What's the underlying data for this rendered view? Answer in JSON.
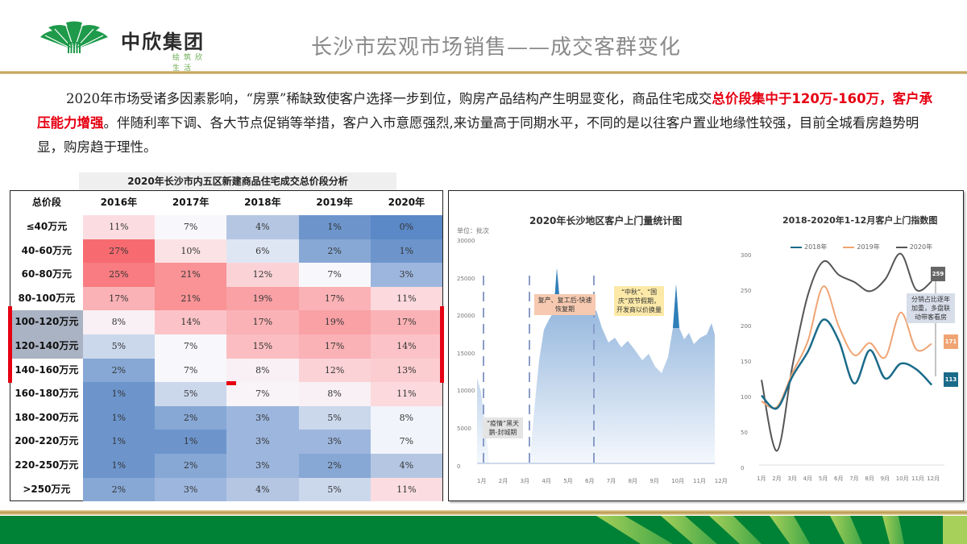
{
  "header": {
    "logo_name": "中欣集团",
    "logo_tagline": "绘筑欣生活",
    "title": "长沙市宏观市场销售——成交客群变化"
  },
  "paragraph": {
    "part1": "2020年市场受诸多因素影响，“房票”稀缺致使客户选择一步到位，购房产品结构产生明显变化，商品住宅成交",
    "highlight": "总价段集中于120万-160万，客户承压能力增强",
    "part2": "。伴随利率下调、各大节点促销等举措，客户入市意愿强烈,来访量高于同期水平，不同的是以往客户置业地缘性较强，目前全城看房趋势明显，购房趋于理性。"
  },
  "table": {
    "title": "2020年长沙市内五区新建商品住宅成交总价段分析",
    "headers": [
      "总价段",
      "2016年",
      "2017年",
      "2018年",
      "2019年",
      "2020年"
    ],
    "rows": [
      {
        "label": "≤40万元",
        "values": [
          "11%",
          "7%",
          "4%",
          "1%",
          "0%"
        ],
        "colors": [
          "#fbdde1",
          "#f8f8fc",
          "#b4c6e2",
          "#6d95cc",
          "#5b88c6"
        ]
      },
      {
        "label": "40-60万元",
        "values": [
          "27%",
          "10%",
          "6%",
          "2%",
          "1%"
        ],
        "colors": [
          "#f76b70",
          "#fbe2e4",
          "#dfe6f3",
          "#87a8d5",
          "#6d95cc"
        ]
      },
      {
        "label": "60-80万元",
        "values": [
          "25%",
          "21%",
          "12%",
          "7%",
          "3%"
        ],
        "colors": [
          "#f87c81",
          "#f99396",
          "#fbd3d7",
          "#f8f8fc",
          "#9db6de"
        ]
      },
      {
        "label": "80-100万元",
        "values": [
          "17%",
          "21%",
          "19%",
          "17%",
          "11%"
        ],
        "colors": [
          "#fab2b6",
          "#f99396",
          "#f9a1a5",
          "#fab2b6",
          "#fbd9dc"
        ]
      },
      {
        "label": "100-120万元",
        "values": [
          "8%",
          "14%",
          "17%",
          "19%",
          "17%"
        ],
        "colors": [
          "#f8f0f4",
          "#fbc3c7",
          "#fab2b6",
          "#f9a1a5",
          "#fab2b6"
        ],
        "highlight": true
      },
      {
        "label": "120-140万元",
        "values": [
          "5%",
          "7%",
          "15%",
          "17%",
          "14%"
        ],
        "colors": [
          "#cbd8ec",
          "#f8f8fc",
          "#fbbdc1",
          "#fab2b6",
          "#fbc3c7"
        ],
        "highlight": true
      },
      {
        "label": "140-160万元",
        "values": [
          "2%",
          "7%",
          "8%",
          "12%",
          "13%"
        ],
        "colors": [
          "#87a8d5",
          "#f8f8fc",
          "#f8f0f4",
          "#fbd3d7",
          "#fbcdd0"
        ],
        "highlight": true
      },
      {
        "label": "160-180万元",
        "values": [
          "1%",
          "5%",
          "7%",
          "8%",
          "11%"
        ],
        "colors": [
          "#6d95cc",
          "#cbd8ec",
          "#f8f4f8",
          "#f8f0f4",
          "#fbd9dc"
        ]
      },
      {
        "label": "180-200万元",
        "values": [
          "1%",
          "2%",
          "3%",
          "5%",
          "8%"
        ],
        "colors": [
          "#6d95cc",
          "#87a8d5",
          "#9db6de",
          "#cbd8ec",
          "#f1f4fa"
        ]
      },
      {
        "label": "200-220万元",
        "values": [
          "1%",
          "1%",
          "3%",
          "3%",
          "7%"
        ],
        "colors": [
          "#6d95cc",
          "#6d95cc",
          "#9db6de",
          "#9db6de",
          "#f1f4fa"
        ]
      },
      {
        "label": "220-250万元",
        "values": [
          "1%",
          "2%",
          "3%",
          "2%",
          "4%"
        ],
        "colors": [
          "#6d95cc",
          "#87a8d5",
          "#9db6de",
          "#87a8d5",
          "#b4c6e2"
        ]
      },
      {
        "label": ">250万元",
        "values": [
          "2%",
          "3%",
          "4%",
          "5%",
          "11%"
        ],
        "colors": [
          "#87a8d5",
          "#9db6de",
          "#b4c6e2",
          "#cbd8ec",
          "#fbdde1"
        ]
      }
    ]
  },
  "chart1": {
    "title": "2020年长沙地区客户上门量统计图",
    "unit": "单位：批次",
    "y_ticks": [
      "30000",
      "25000",
      "20000",
      "15000",
      "10000",
      "5000",
      "0"
    ],
    "x_ticks": [
      "1月",
      "2月",
      "3月",
      "4月",
      "5月",
      "6月",
      "7月",
      "8月",
      "9月",
      "10月",
      "11月",
      "12月"
    ],
    "annotations": {
      "a1": "“疫情”黑天鹅-封城期",
      "a2": "复产、复工后-快速恢复期",
      "a3": "“中秋”、“国庆”双节假期，开发商以价换量"
    }
  },
  "chart2": {
    "title": "2018-2020年1-12月客户上门指数图",
    "legend": [
      "2018年",
      "2019年",
      "2020年"
    ],
    "y_ticks": [
      "300",
      "250",
      "200",
      "150",
      "100",
      "50",
      "0"
    ],
    "x_ticks": [
      "1月",
      "2月",
      "3月",
      "4月",
      "5月",
      "6月",
      "7月",
      "8月",
      "9月",
      "10月",
      "11月",
      "12月"
    ],
    "end_labels": {
      "y2020": "259",
      "y2019": "171",
      "y2018": "113"
    },
    "annotation": "分销占比逐年加重，多盘联动带客看房"
  },
  "chart_data": [
    {
      "type": "heatmap",
      "title": "2020年长沙市内五区新建商品住宅成交总价段分析",
      "x": [
        "2016年",
        "2017年",
        "2018年",
        "2019年",
        "2020年"
      ],
      "y": [
        "≤40万元",
        "40-60万元",
        "60-80万元",
        "80-100万元",
        "100-120万元",
        "120-140万元",
        "140-160万元",
        "160-180万元",
        "180-200万元",
        "200-220万元",
        "220-250万元",
        ">250万元"
      ],
      "values": [
        [
          11,
          7,
          4,
          1,
          0
        ],
        [
          27,
          10,
          6,
          2,
          1
        ],
        [
          25,
          21,
          12,
          7,
          3
        ],
        [
          17,
          21,
          19,
          17,
          11
        ],
        [
          8,
          14,
          17,
          19,
          17
        ],
        [
          5,
          7,
          15,
          17,
          14
        ],
        [
          2,
          7,
          8,
          12,
          13
        ],
        [
          1,
          5,
          7,
          8,
          11
        ],
        [
          1,
          2,
          3,
          5,
          8
        ],
        [
          1,
          1,
          3,
          3,
          7
        ],
        [
          1,
          2,
          3,
          2,
          4
        ],
        [
          2,
          3,
          4,
          5,
          11
        ]
      ],
      "unit": "%"
    },
    {
      "type": "area",
      "title": "2020年长沙地区客户上门量统计图",
      "ylabel": "单位：批次",
      "ylim": [
        0,
        30000
      ],
      "categories": [
        "1月",
        "2月",
        "3月",
        "4月",
        "5月",
        "6月",
        "7月",
        "8月",
        "9月",
        "10月",
        "11月",
        "12月"
      ],
      "values": [
        10500,
        300,
        9500,
        21000,
        20500,
        20000,
        16500,
        15500,
        14000,
        24500,
        17500,
        16500
      ],
      "annotations": [
        "“疫情”黑天鹅-封城期",
        "复产、复工后-快速恢复期",
        "“中秋”、“国庆”双节假期，开发商以价换量"
      ]
    },
    {
      "type": "line",
      "title": "2018-2020年1-12月客户上门指数图",
      "categories": [
        "1月",
        "2月",
        "3月",
        "4月",
        "5月",
        "6月",
        "7月",
        "8月",
        "9月",
        "10月",
        "11月",
        "12月"
      ],
      "ylim": [
        0,
        300
      ],
      "series": [
        {
          "name": "2018年",
          "color": "#1a6b8a",
          "values": [
            98,
            80,
            125,
            160,
            205,
            175,
            115,
            162,
            122,
            143,
            135,
            113
          ]
        },
        {
          "name": "2019年",
          "color": "#f0a474",
          "values": [
            90,
            82,
            130,
            175,
            252,
            195,
            155,
            172,
            152,
            215,
            163,
            171
          ]
        },
        {
          "name": "2020年",
          "color": "#555555",
          "values": [
            120,
            20,
            140,
            240,
            287,
            268,
            258,
            245,
            262,
            298,
            247,
            259
          ]
        }
      ],
      "annotation": "分销占比逐年加重，多盘联动带客看房"
    }
  ]
}
